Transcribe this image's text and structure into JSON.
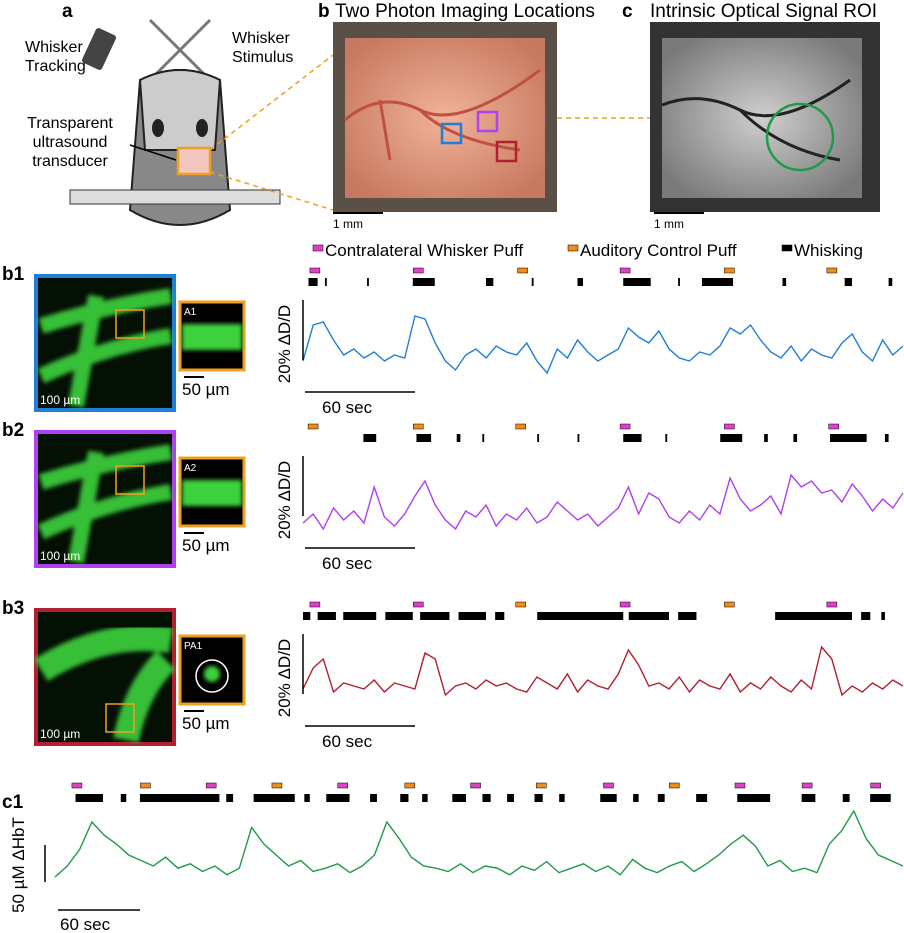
{
  "panel_a": {
    "label": "a",
    "tracking": [
      "Whisker",
      "Tracking"
    ],
    "stimulus": [
      "Whisker",
      "Stimulus"
    ],
    "transducer": [
      "Transparent",
      "ultrasound",
      "transducer"
    ]
  },
  "panel_b": {
    "label": "b",
    "title": "Two Photon Imaging Locations",
    "scale": "1 mm"
  },
  "panel_c": {
    "label": "c",
    "title": "Intrinsic Optical Signal ROI",
    "scale": "1 mm"
  },
  "legend": [
    {
      "name": "Contralateral Whisker Puff",
      "color": "#e040c8"
    },
    {
      "name": "Auditory Control Puff",
      "color": "#f08c1a"
    },
    {
      "name": "Whisking",
      "color": "#000000"
    }
  ],
  "rows": [
    {
      "label": "b1",
      "color": "#1f7fd8",
      "inset_label": "A1",
      "image_scale": "100 µm",
      "inset_scale": "50 µm",
      "y_scale": "20% ΔD/D",
      "x_scale": "60 sec",
      "contra_puffs": [
        6.5,
        63,
        176
      ],
      "auditory_puffs": [
        120,
        233,
        289
      ],
      "whisking": [
        [
          3,
          8
        ],
        [
          12,
          13
        ],
        [
          35,
          36
        ],
        [
          60,
          72
        ],
        [
          100,
          104
        ],
        [
          125,
          126
        ],
        [
          150,
          153
        ],
        [
          175,
          190
        ],
        [
          205,
          206
        ],
        [
          218,
          235
        ],
        [
          262,
          264
        ],
        [
          296,
          300
        ],
        [
          320,
          322
        ]
      ],
      "values": [
        2,
        14,
        15,
        9,
        4,
        6,
        3,
        5,
        2,
        4,
        3,
        17,
        16,
        8,
        2,
        -1,
        4,
        6,
        3,
        7,
        5,
        4,
        8,
        2,
        -2,
        6,
        3,
        9,
        5,
        2,
        4,
        6,
        13,
        10,
        8,
        12,
        6,
        3,
        2,
        5,
        4,
        7,
        13,
        11,
        14,
        9,
        5,
        3,
        7,
        2,
        6,
        4,
        3,
        8,
        11,
        5,
        2,
        9,
        4,
        7
      ]
    },
    {
      "label": "b2",
      "color": "#b040f0",
      "inset_label": "A2",
      "image_scale": "100 µm",
      "inset_scale": "50 µm",
      "y_scale": "20% ΔD/D",
      "x_scale": "60 sec",
      "contra_puffs": [
        176,
        233,
        290
      ],
      "auditory_puffs": [
        5.5,
        63,
        119
      ],
      "whisking": [
        [
          33,
          40
        ],
        [
          62,
          70
        ],
        [
          84,
          86
        ],
        [
          98,
          99
        ],
        [
          128,
          129
        ],
        [
          150,
          151
        ],
        [
          175,
          185
        ],
        [
          198,
          199
        ],
        [
          228,
          240
        ],
        [
          252,
          254
        ],
        [
          268,
          270
        ],
        [
          288,
          308
        ],
        [
          318,
          320
        ]
      ],
      "values": [
        0,
        3,
        -2,
        5,
        1,
        4,
        0,
        12,
        2,
        -1,
        3,
        9,
        14,
        6,
        1,
        -2,
        4,
        2,
        6,
        -1,
        3,
        1,
        5,
        0,
        2,
        7,
        4,
        1,
        3,
        -1,
        2,
        5,
        12,
        3,
        10,
        8,
        2,
        0,
        4,
        1,
        6,
        3,
        15,
        8,
        4,
        6,
        9,
        3,
        16,
        12,
        14,
        10,
        11,
        7,
        13,
        9,
        4,
        8,
        5,
        10
      ]
    },
    {
      "label": "b3",
      "color": "#b22030",
      "inset_label": "PA1",
      "image_scale": "100 µm",
      "inset_scale": "50 µm",
      "y_scale": "20% ΔD/D",
      "x_scale": "60 sec",
      "contra_puffs": [
        6.5,
        63,
        176,
        289
      ],
      "auditory_puffs": [
        119,
        233
      ],
      "whisking": [
        [
          0,
          4
        ],
        [
          8,
          18
        ],
        [
          22,
          40
        ],
        [
          45,
          60
        ],
        [
          64,
          80
        ],
        [
          85,
          100
        ],
        [
          105,
          110
        ],
        [
          128,
          175
        ],
        [
          178,
          200
        ],
        [
          205,
          215
        ],
        [
          258,
          300
        ],
        [
          305,
          310
        ],
        [
          316,
          318
        ]
      ],
      "values": [
        4,
        11,
        14,
        3,
        6,
        5,
        4,
        7,
        3,
        6,
        5,
        4,
        16,
        14,
        2,
        5,
        6,
        4,
        7,
        5,
        6,
        4,
        3,
        8,
        6,
        4,
        9,
        3,
        7,
        5,
        4,
        9,
        17,
        12,
        5,
        6,
        4,
        8,
        3,
        7,
        5,
        4,
        9,
        3,
        6,
        4,
        8,
        5,
        3,
        7,
        4,
        18,
        14,
        2,
        5,
        3,
        6,
        4,
        7,
        5
      ]
    }
  ],
  "c1": {
    "label": "c1",
    "color": "#1e9a4a",
    "y_scale": "50 µM ΔHbT",
    "x_scale": "60 sec",
    "contra_puffs": [
      16,
      114,
      210,
      307,
      404,
      500,
      549,
      599
    ],
    "auditory_puffs": [
      66,
      162,
      259,
      355,
      452
    ],
    "whisking": [
      [
        15,
        35
      ],
      [
        48,
        52
      ],
      [
        62,
        120
      ],
      [
        125,
        130
      ],
      [
        145,
        175
      ],
      [
        182,
        186
      ],
      [
        198,
        215
      ],
      [
        230,
        235
      ],
      [
        252,
        258
      ],
      [
        268,
        272
      ],
      [
        290,
        300
      ],
      [
        312,
        318
      ],
      [
        330,
        335
      ],
      [
        350,
        356
      ],
      [
        368,
        372
      ],
      [
        398,
        410
      ],
      [
        422,
        426
      ],
      [
        440,
        445
      ],
      [
        468,
        476
      ],
      [
        498,
        522
      ],
      [
        545,
        555
      ],
      [
        575,
        580
      ],
      [
        595,
        610
      ]
    ],
    "values": [
      10,
      20,
      35,
      60,
      48,
      40,
      30,
      25,
      20,
      28,
      18,
      22,
      15,
      20,
      12,
      18,
      55,
      40,
      30,
      20,
      25,
      15,
      18,
      22,
      14,
      20,
      30,
      60,
      45,
      28,
      20,
      18,
      15,
      22,
      14,
      20,
      18,
      12,
      20,
      16,
      24,
      14,
      18,
      22,
      15,
      20,
      12,
      26,
      18,
      14,
      20,
      24,
      15,
      22,
      30,
      40,
      48,
      38,
      20,
      25,
      15,
      18,
      14,
      40,
      52,
      70,
      45,
      30,
      25,
      20
    ]
  }
}
